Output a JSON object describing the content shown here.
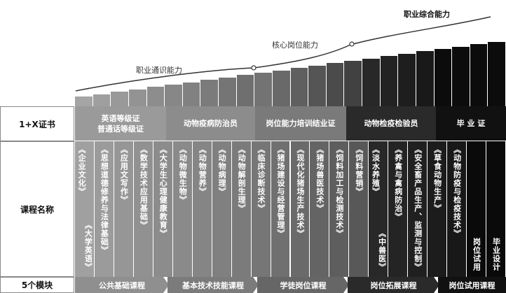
{
  "levels": {
    "general": "职业通识能力",
    "core": "核心岗位能力",
    "comprehensive": "职业综合能力"
  },
  "row_labels": {
    "cert": "1+X证书",
    "courses": "课程名称",
    "modules": "5个模块"
  },
  "certificates": [
    {
      "line1": "英语等级证",
      "line2": "普通话等级证"
    },
    {
      "line1": "动物疫病防治员",
      "line2": ""
    },
    {
      "line1": "岗位能力培训结业证",
      "line2": ""
    },
    {
      "line1": "动物检疫检验员",
      "line2": ""
    },
    {
      "line1": "毕 业 证",
      "line2": ""
    }
  ],
  "courses": [
    {
      "c1": "《企业文化》",
      "c2": "《大学英语》"
    },
    {
      "c1": "《思想道德修养与法律基础》",
      "c2": ""
    },
    {
      "c1": "《应用文写作》",
      "c2": ""
    },
    {
      "c1": "《数学技术应用基础》",
      "c2": ""
    },
    {
      "c1": "《大学生心理健康教育》",
      "c2": ""
    },
    {
      "c1": "《动物微生物》",
      "c2": ""
    },
    {
      "c1": "《动物营养》",
      "c2": ""
    },
    {
      "c1": "《动物病理》",
      "c2": ""
    },
    {
      "c1": "《动物解剖生理》",
      "c2": ""
    },
    {
      "c1": "《临床诊断技术》",
      "c2": ""
    },
    {
      "c1": "《猪场建设与经营管理》",
      "c2": ""
    },
    {
      "c1": "《现代化猪场生产技术》",
      "c2": ""
    },
    {
      "c1": "《猪场兽医技术》",
      "c2": ""
    },
    {
      "c1": "《饲料加工与检测技术》",
      "c2": ""
    },
    {
      "c1": "《饲料营销》",
      "c2": ""
    },
    {
      "c1": "《淡水养殖》",
      "c2": "《中兽医》"
    },
    {
      "c1": "《养禽与禽病防治》",
      "c2": ""
    },
    {
      "c1": "《安全畜产品生产、监测与控制》",
      "c2": ""
    },
    {
      "c1": "《草食动物生产》",
      "c2": ""
    },
    {
      "c1": "《动物防疫与检疫技术》",
      "c2": ""
    },
    {
      "c1": "岗位试用",
      "c2": ""
    },
    {
      "c1": "毕业设计",
      "c2": ""
    }
  ],
  "modules": [
    "公共基础课程",
    "基本技术技能课程",
    "学徒岗位课程",
    "岗位拓展课程",
    "岗位试用课程"
  ],
  "colors": {
    "stage_light": "#aaaaaa",
    "stage_mid": "#5d5d5d",
    "stage_dark": "#1c1c1c",
    "stage_darkest": "#0a0a0a"
  }
}
